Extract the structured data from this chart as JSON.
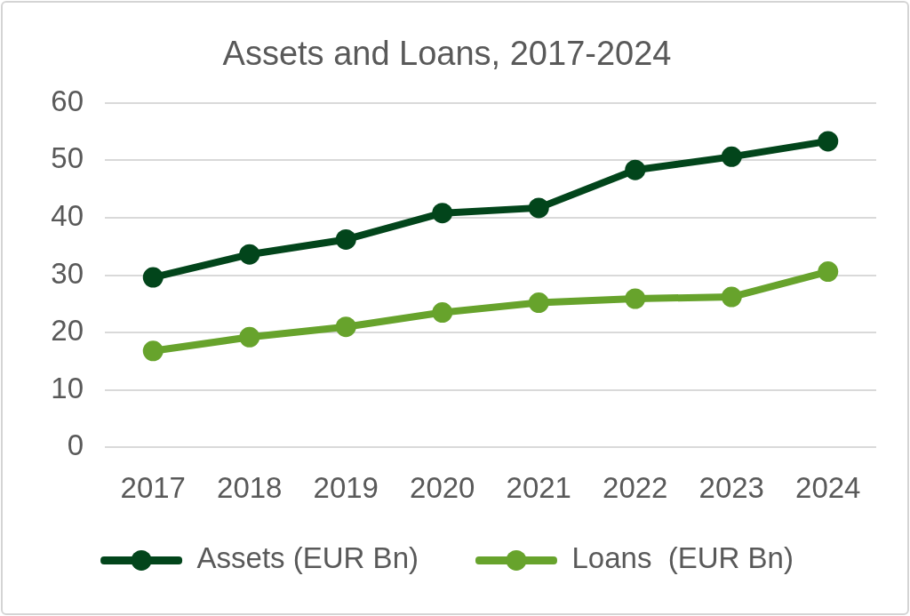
{
  "chart_data": {
    "type": "line",
    "title": "Assets and Loans, 2017-2024",
    "categories": [
      "2017",
      "2018",
      "2019",
      "2020",
      "2021",
      "2022",
      "2023",
      "2024"
    ],
    "series": [
      {
        "name": "Assets (EUR Bn)",
        "color": "#02451b",
        "values": [
          29.6,
          33.6,
          36.2,
          40.8,
          41.7,
          48.3,
          50.6,
          53.3
        ]
      },
      {
        "name": "Loans  (EUR Bn)",
        "color": "#67a32c",
        "values": [
          16.8,
          19.2,
          21.0,
          23.5,
          25.2,
          25.9,
          26.2,
          30.6
        ]
      }
    ],
    "ylim": [
      0,
      60
    ],
    "yticks": [
      0,
      10,
      20,
      30,
      40,
      50,
      60
    ],
    "grid": "y",
    "legend": "bottom",
    "marker": "circle",
    "line_style": "solid"
  }
}
